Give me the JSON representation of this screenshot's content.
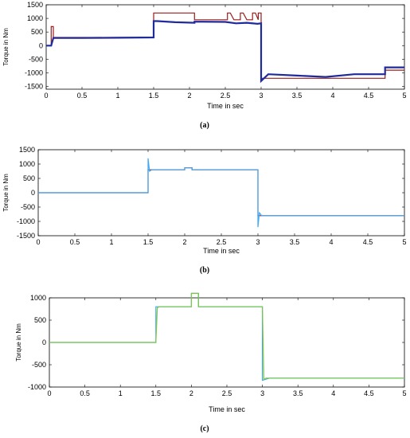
{
  "chart_data": [
    {
      "panel": "a",
      "type": "line",
      "caption": "(a)",
      "xlabel": "Time in sec",
      "ylabel": "Torque in Nm",
      "xlim": [
        0,
        5
      ],
      "ylim": [
        -1600,
        1500
      ],
      "xticks": [
        0,
        0.5,
        1,
        1.5,
        2,
        2.5,
        3,
        3.5,
        4,
        4.5,
        5
      ],
      "yticks": [
        -1500,
        -1000,
        -500,
        0,
        500,
        1000,
        1500
      ],
      "colors": [
        "#9c1c1c",
        "#1f2b9a",
        "#d9534f"
      ],
      "series": [
        {
          "x": [
            0,
            0.07,
            0.07,
            0.1,
            0.1,
            1.5,
            1.5,
            2.07,
            2.07,
            2.53,
            2.53,
            2.57,
            2.62,
            2.62,
            2.71,
            2.71,
            2.75,
            2.8,
            2.8,
            2.88,
            2.88,
            2.92,
            2.96,
            2.96,
            3.0,
            3.0,
            3.03,
            4.73,
            4.73,
            5.0
          ],
          "y": [
            0,
            0,
            700,
            700,
            300,
            300,
            1200,
            1200,
            950,
            950,
            1200,
            1200,
            950,
            950,
            950,
            1200,
            1200,
            950,
            950,
            950,
            1200,
            1200,
            950,
            1200,
            1200,
            -1200,
            -1200,
            -1200,
            -900,
            -900
          ]
        },
        {
          "x": [
            0,
            0.07,
            0.1,
            0.5,
            1.0,
            1.5,
            1.5,
            1.55,
            1.8,
            2.07,
            2.07,
            2.5,
            2.65,
            2.8,
            2.95,
            3.0,
            3.0,
            3.1,
            3.5,
            3.9,
            4.3,
            4.73,
            4.73,
            5.0
          ],
          "y": [
            0,
            0,
            280,
            280,
            290,
            300,
            900,
            900,
            860,
            840,
            880,
            870,
            820,
            840,
            800,
            820,
            -1300,
            -1050,
            -1100,
            -1150,
            -1050,
            -1050,
            -800,
            -800
          ]
        }
      ]
    },
    {
      "panel": "b",
      "type": "line",
      "caption": "(b)",
      "xlabel": "Time in sec",
      "ylabel": "Torque in Nm",
      "xlim": [
        0,
        5
      ],
      "ylim": [
        -1500,
        1500
      ],
      "xticks": [
        0,
        0.5,
        1,
        1.5,
        2,
        2.5,
        3,
        3.5,
        4,
        4.5,
        5
      ],
      "yticks": [
        -1500,
        -1000,
        -500,
        0,
        500,
        1000,
        1500
      ],
      "colors": [
        "#9c1c1c",
        "#3fa9f5"
      ],
      "series": [
        {
          "x": [
            0,
            1.5,
            1.5,
            2.0,
            2.0,
            2.1,
            2.1,
            3.0,
            3.0,
            5.0
          ],
          "y": [
            0,
            0,
            800,
            800,
            870,
            870,
            800,
            800,
            -800,
            -800
          ]
        },
        {
          "x": [
            0,
            1.5,
            1.5,
            1.52,
            1.55,
            2.0,
            2.0,
            2.1,
            2.1,
            3.0,
            3.0,
            3.02,
            3.05,
            5.0
          ],
          "y": [
            0,
            0,
            1200,
            750,
            800,
            800,
            870,
            870,
            800,
            800,
            -1200,
            -700,
            -800,
            -800
          ]
        }
      ]
    },
    {
      "panel": "c",
      "type": "line",
      "caption": "(c)",
      "xlabel": "Time in sec",
      "ylabel": "Torque in Nm",
      "xlim": [
        0,
        5
      ],
      "ylim": [
        -1000,
        1000
      ],
      "xticks": [
        0,
        0.5,
        1,
        1.5,
        2,
        2.5,
        3,
        3.5,
        4,
        4.5,
        5
      ],
      "yticks": [
        -1000,
        -500,
        0,
        500,
        1000
      ],
      "colors": [
        "#3fa9f5",
        "#7ac943"
      ],
      "series": [
        {
          "x": [
            0,
            1.5,
            1.5,
            2.0,
            2.0,
            2.1,
            2.1,
            3.0,
            3.0,
            3.1,
            5.0
          ],
          "y": [
            0,
            0,
            800,
            800,
            1100,
            1100,
            800,
            800,
            -850,
            -800,
            -800
          ]
        },
        {
          "x": [
            0,
            1.5,
            1.52,
            1.55,
            2.0,
            2.0,
            2.1,
            2.1,
            3.0,
            3.02,
            3.05,
            5.0
          ],
          "y": [
            0,
            0,
            780,
            800,
            800,
            1100,
            1100,
            800,
            800,
            -830,
            -800,
            -800
          ]
        }
      ]
    }
  ]
}
